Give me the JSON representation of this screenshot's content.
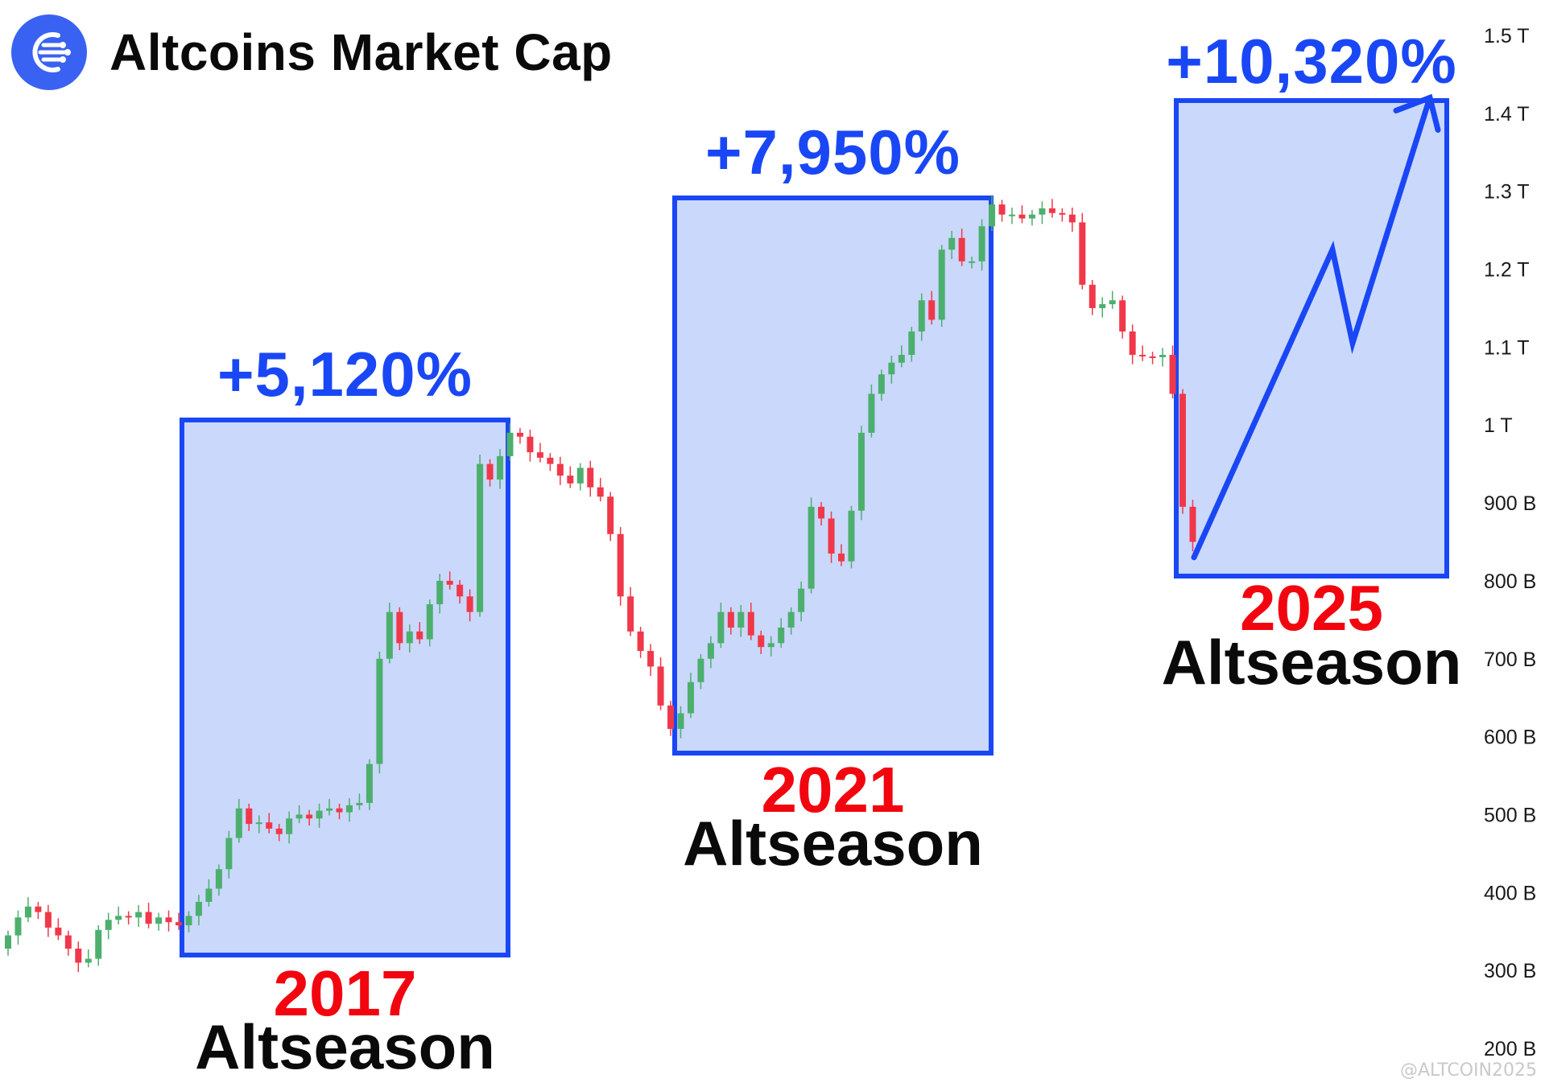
{
  "header": {
    "title": "Altcoins Market Cap",
    "logo_icon": "altcoin-logo-icon",
    "logo_color": "#3a62f2"
  },
  "watermark": "@ALTCOIN2025",
  "colors": {
    "up_candle": "#4caf6e",
    "down_candle": "#f0384a",
    "highlight_fill": "#cad8fb",
    "highlight_border": "#1a47f5",
    "gain_text": "#1a47f5",
    "year_text": "#f2050f",
    "label_text": "#0a0a0a"
  },
  "chart_data": {
    "type": "candlestick",
    "title": "Altcoins Market Cap",
    "y_axis": {
      "scale": "linear",
      "range": [
        200,
        1500
      ],
      "unit": "billion USD",
      "ticks": [
        {
          "value": 1500,
          "label": "1.5 T"
        },
        {
          "value": 1400,
          "label": "1.4 T"
        },
        {
          "value": 1300,
          "label": "1.3 T"
        },
        {
          "value": 1200,
          "label": "1.2 T"
        },
        {
          "value": 1100,
          "label": "1.1 T"
        },
        {
          "value": 1000,
          "label": "1 T"
        },
        {
          "value": 900,
          "label": "900 B"
        },
        {
          "value": 800,
          "label": "800 B"
        },
        {
          "value": 700,
          "label": "700 B"
        },
        {
          "value": 600,
          "label": "600 B"
        },
        {
          "value": 500,
          "label": "500 B"
        },
        {
          "value": 400,
          "label": "400 B"
        },
        {
          "value": 300,
          "label": "300 B"
        },
        {
          "value": 200,
          "label": "200 B"
        }
      ]
    },
    "grid": false,
    "price_path": [
      328,
      345,
      368,
      382,
      375,
      355,
      345,
      328,
      310,
      315,
      352,
      365,
      370,
      368,
      375,
      360,
      368,
      362,
      358,
      370,
      388,
      405,
      430,
      470,
      508,
      488,
      490,
      482,
      475,
      495,
      500,
      495,
      505,
      508,
      503,
      512,
      515,
      565,
      700,
      760,
      720,
      735,
      725,
      770,
      800,
      795,
      780,
      760,
      950,
      930,
      960,
      990,
      985,
      965,
      958,
      950,
      935,
      925,
      945,
      920,
      908,
      860,
      780,
      735,
      710,
      690,
      640,
      610,
      630,
      670,
      700,
      720,
      760,
      740,
      760,
      730,
      715,
      720,
      740,
      760,
      790,
      895,
      880,
      835,
      825,
      890,
      990,
      1040,
      1065,
      1080,
      1090,
      1120,
      1160,
      1135,
      1225,
      1240,
      1210,
      1210,
      1255,
      1283,
      1270,
      1270,
      1265,
      1270,
      1278,
      1272,
      1270,
      1260,
      1180,
      1150,
      1155,
      1160,
      1120,
      1090,
      1088,
      1087,
      1090,
      1040,
      895,
      850
    ],
    "highlights": [
      {
        "year": "2017",
        "label": "Altseason",
        "gain": "+5,120%",
        "projected": false
      },
      {
        "year": "2021",
        "label": "Altseason",
        "gain": "+7,950%",
        "projected": false
      },
      {
        "year": "2025",
        "label": "Altseason",
        "gain": "+10,320%",
        "projected": true
      }
    ],
    "projection_path": [
      830,
      1225,
      1105,
      1420
    ]
  }
}
